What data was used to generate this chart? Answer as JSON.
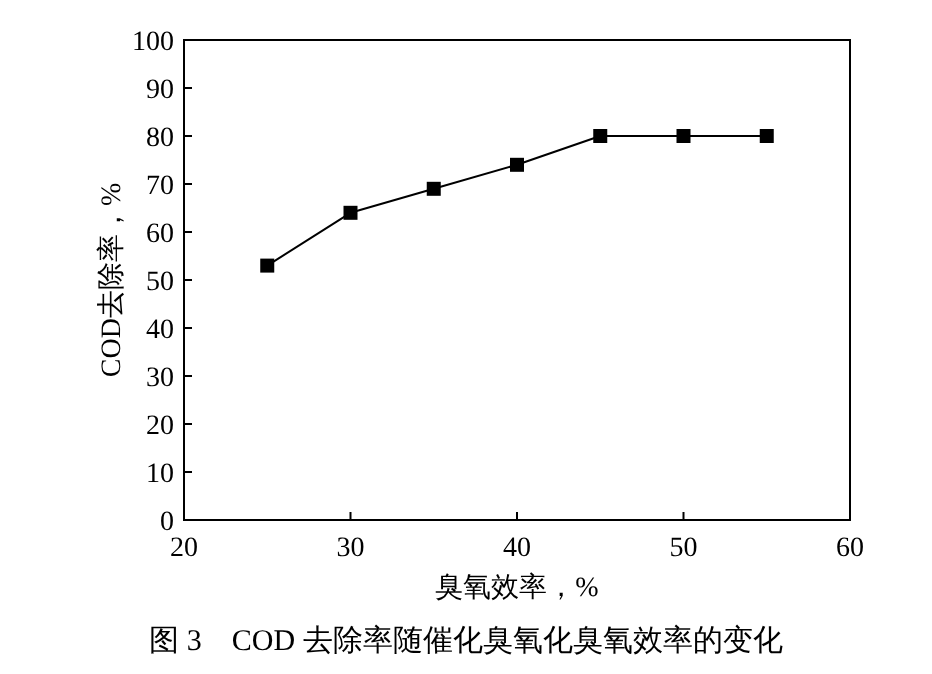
{
  "chart_data": {
    "type": "line",
    "title": "图 3　COD 去除率随催化臭氧化臭氧效率的变化",
    "xlabel": "臭氧效率，%",
    "ylabel": "COD去除率，%",
    "x": [
      25,
      30,
      35,
      40,
      45,
      50,
      55
    ],
    "series": [
      {
        "color": "#000000",
        "values": [
          53,
          64,
          69,
          74,
          80,
          80,
          80
        ]
      }
    ],
    "xlim": [
      20,
      60
    ],
    "xticks": [
      20,
      30,
      40,
      50,
      60
    ],
    "ylim": [
      0,
      100
    ],
    "yticks": [
      0,
      10,
      20,
      30,
      40,
      50,
      60,
      70,
      80,
      90,
      100
    ],
    "marker": "square",
    "line_style": "solid",
    "grid": false
  }
}
